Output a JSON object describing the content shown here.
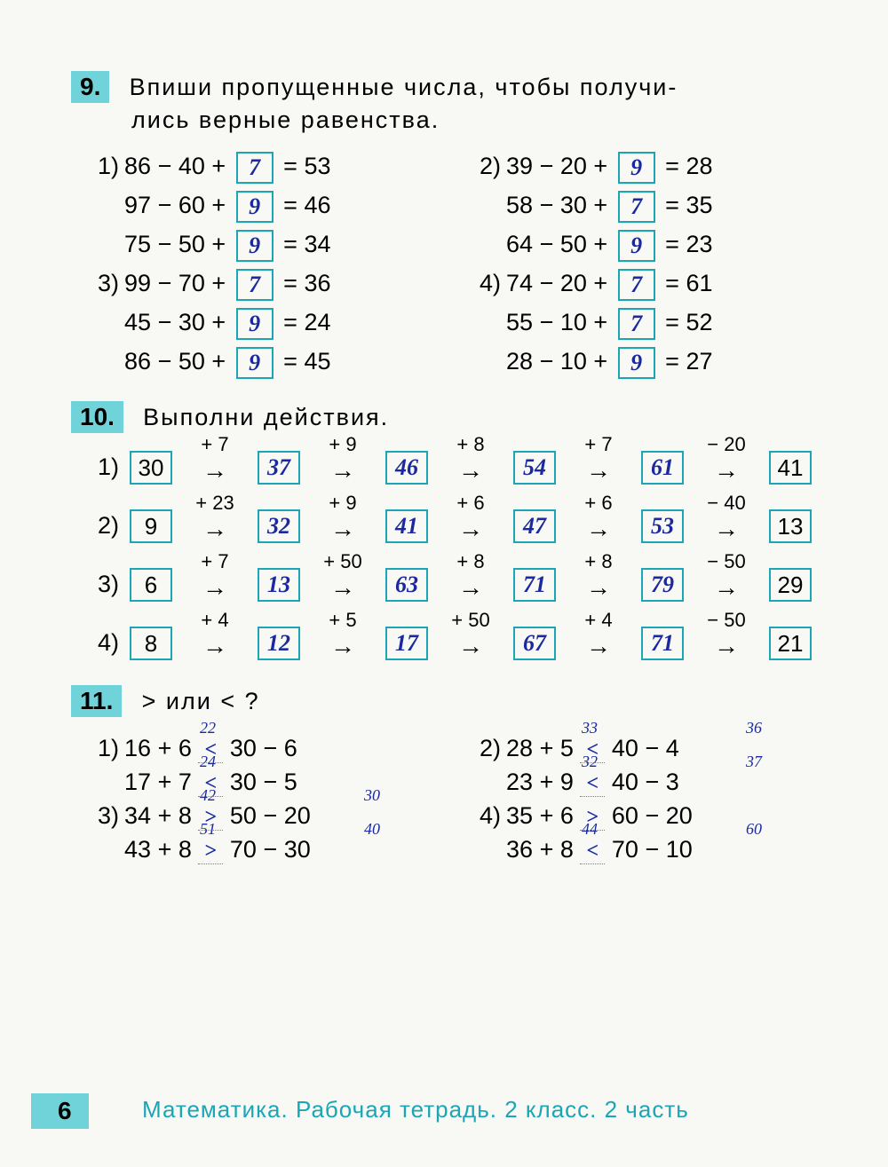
{
  "page_number": "6",
  "footer_text": "Математика. Рабочая тетрадь. 2 класс. 2 часть",
  "colors": {
    "box_border": "#1aa6b5",
    "task_bg": "#6fd3d9",
    "handwriting": "#1a2a9e",
    "text": "#000000",
    "page_bg": "#f8f8f5"
  },
  "task9": {
    "number": "9.",
    "text_l1": "Впиши пропущенные числа, чтобы получи-",
    "text_l2": "лись верные равенства.",
    "groups": [
      {
        "sub": "1)",
        "rows": [
          {
            "lhs1": "86",
            "op1": "−",
            "lhs2": "40",
            "op2": "+",
            "ans": "7",
            "rhs": "53"
          },
          {
            "lhs1": "97",
            "op1": "−",
            "lhs2": "60",
            "op2": "+",
            "ans": "9",
            "rhs": "46"
          },
          {
            "lhs1": "75",
            "op1": "−",
            "lhs2": "50",
            "op2": "+",
            "ans": "9",
            "rhs": "34"
          }
        ]
      },
      {
        "sub": "2)",
        "rows": [
          {
            "lhs1": "39",
            "op1": "−",
            "lhs2": "20",
            "op2": "+",
            "ans": "9",
            "rhs": "28"
          },
          {
            "lhs1": "58",
            "op1": "−",
            "lhs2": "30",
            "op2": "+",
            "ans": "7",
            "rhs": "35"
          },
          {
            "lhs1": "64",
            "op1": "−",
            "lhs2": "50",
            "op2": "+",
            "ans": "9",
            "rhs": "23"
          }
        ]
      },
      {
        "sub": "3)",
        "rows": [
          {
            "lhs1": "99",
            "op1": "−",
            "lhs2": "70",
            "op2": "+",
            "ans": "7",
            "rhs": "36"
          },
          {
            "lhs1": "45",
            "op1": "−",
            "lhs2": "30",
            "op2": "+",
            "ans": "9",
            "rhs": "24"
          },
          {
            "lhs1": "86",
            "op1": "−",
            "lhs2": "50",
            "op2": "+",
            "ans": "9",
            "rhs": "45"
          }
        ]
      },
      {
        "sub": "4)",
        "rows": [
          {
            "lhs1": "74",
            "op1": "−",
            "lhs2": "20",
            "op2": "+",
            "ans": "7",
            "rhs": "61"
          },
          {
            "lhs1": "55",
            "op1": "−",
            "lhs2": "10",
            "op2": "+",
            "ans": "7",
            "rhs": "52"
          },
          {
            "lhs1": "28",
            "op1": "−",
            "lhs2": "10",
            "op2": "+",
            "ans": "9",
            "rhs": "27"
          }
        ]
      }
    ]
  },
  "task10": {
    "number": "10.",
    "text": "Выполни действия.",
    "chains": [
      {
        "sub": "1)",
        "start": "30",
        "ops": [
          "+ 7",
          "+ 9",
          "+ 8",
          "+ 7",
          "− 20"
        ],
        "vals": [
          "37",
          "46",
          "54",
          "61",
          "41"
        ],
        "hand": [
          true,
          true,
          true,
          true,
          false
        ]
      },
      {
        "sub": "2)",
        "start": "9",
        "ops": [
          "+ 23",
          "+ 9",
          "+ 6",
          "+ 6",
          "− 40"
        ],
        "vals": [
          "32",
          "41",
          "47",
          "53",
          "13"
        ],
        "hand": [
          true,
          true,
          true,
          true,
          false
        ]
      },
      {
        "sub": "3)",
        "start": "6",
        "ops": [
          "+ 7",
          "+ 50",
          "+ 8",
          "+ 8",
          "− 50"
        ],
        "vals": [
          "13",
          "63",
          "71",
          "79",
          "29"
        ],
        "hand": [
          true,
          true,
          true,
          true,
          false
        ]
      },
      {
        "sub": "4)",
        "start": "8",
        "ops": [
          "+ 4",
          "+ 5",
          "+ 50",
          "+ 4",
          "− 50"
        ],
        "vals": [
          "12",
          "17",
          "67",
          "71",
          "21"
        ],
        "hand": [
          true,
          true,
          true,
          true,
          false
        ]
      }
    ]
  },
  "task11": {
    "number": "11.",
    "text": "> или < ?",
    "groups": [
      {
        "sub": "1)",
        "rows": [
          {
            "l1": "16",
            "lo": "+",
            "l2": "6",
            "ans": "<",
            "r1": "30",
            "ro": "−",
            "r2": "6",
            "ann_l": "22",
            "ann_r": ""
          },
          {
            "l1": "17",
            "lo": "+",
            "l2": "7",
            "ans": "<",
            "r1": "30",
            "ro": "−",
            "r2": "5",
            "ann_l": "24",
            "ann_r": ""
          }
        ]
      },
      {
        "sub": "2)",
        "rows": [
          {
            "l1": "28",
            "lo": "+",
            "l2": "5",
            "ans": "<",
            "r1": "40",
            "ro": "−",
            "r2": "4",
            "ann_l": "33",
            "ann_r": "36"
          },
          {
            "l1": "23",
            "lo": "+",
            "l2": "9",
            "ans": "<",
            "r1": "40",
            "ro": "−",
            "r2": "3",
            "ann_l": "32",
            "ann_r": "37"
          }
        ]
      },
      {
        "sub": "3)",
        "rows": [
          {
            "l1": "34",
            "lo": "+",
            "l2": "8",
            "ans": ">",
            "r1": "50",
            "ro": "−",
            "r2": "20",
            "ann_l": "42",
            "ann_r": "30"
          },
          {
            "l1": "43",
            "lo": "+",
            "l2": "8",
            "ans": ">",
            "r1": "70",
            "ro": "−",
            "r2": "30",
            "ann_l": "51",
            "ann_r": "40"
          }
        ]
      },
      {
        "sub": "4)",
        "rows": [
          {
            "l1": "35",
            "lo": "+",
            "l2": "6",
            "ans": ">",
            "r1": "60",
            "ro": "−",
            "r2": "20",
            "ann_l": "",
            "ann_r": ""
          },
          {
            "l1": "36",
            "lo": "+",
            "l2": "8",
            "ans": "<",
            "r1": "70",
            "ro": "−",
            "r2": "10",
            "ann_l": "44",
            "ann_r": "60"
          }
        ]
      }
    ]
  }
}
